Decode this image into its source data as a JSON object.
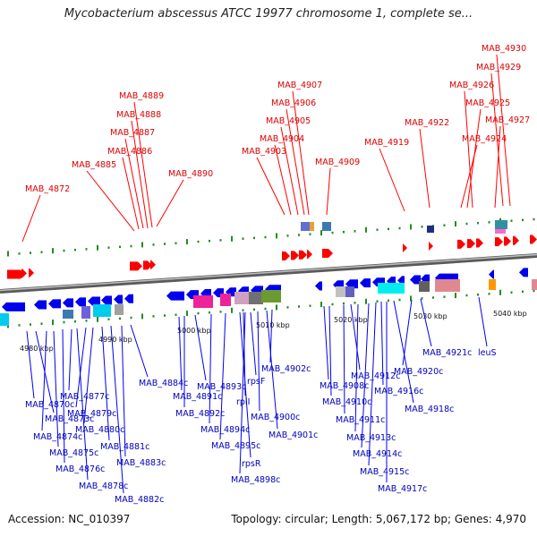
{
  "title": "Mycobacterium abscessus ATCC 19977 chromosome 1, complete se...",
  "footer": {
    "accession": "Accession: NC_010397",
    "summary": "Topology: circular; Length: 5,067,172 bp; Genes: 4,970"
  },
  "colors": {
    "forward_gene": "#ff0000",
    "reverse_gene": "#0000ee",
    "backbone": "#888888",
    "tick": "#228b22"
  },
  "axis_ticks": [
    "4980 kbp",
    "4990 kbp",
    "5000 kbp",
    "5010 kbp",
    "5020 kbp",
    "5030 kbp",
    "5040 kbp"
  ],
  "forward_labels": [
    "MAB_4872",
    "MAB_4885",
    "MAB_4886",
    "MAB_4887",
    "MAB_4888",
    "MAB_4889",
    "MAB_4890",
    "MAB_4903",
    "MAB_4904",
    "MAB_4905",
    "MAB_4906",
    "MAB_4907",
    "MAB_4909",
    "MAB_4919",
    "MAB_4922",
    "MAB_4924",
    "MAB_4925",
    "MAB_4926",
    "MAB_4927",
    "MAB_4929",
    "MAB_4930"
  ],
  "reverse_labels": [
    "MAB_4870c",
    "MAB_4873c",
    "MAB_4874c",
    "MAB_4875c",
    "MAB_4876c",
    "MAB_4877c",
    "MAB_4878c",
    "MAB_4879c",
    "MAB_4880c",
    "MAB_4881c",
    "MAB_4882c",
    "MAB_4883c",
    "MAB_4884c",
    "MAB_4891c",
    "MAB_4892c",
    "MAB_4893c",
    "MAB_4894c",
    "MAB_4895c",
    "rpsR",
    "MAB_4898c",
    "rplI",
    "rpsF",
    "MAB_4900c",
    "MAB_4901c",
    "MAB_4902c",
    "MAB_4908c",
    "MAB_4910c",
    "MAB_4911c",
    "MAB_4912c",
    "MAB_4913c",
    "MAB_4914c",
    "MAB_4915c",
    "MAB_4916c",
    "MAB_4917c",
    "MAB_4918c",
    "MAB_4920c",
    "MAB_4921c",
    "leuS"
  ]
}
